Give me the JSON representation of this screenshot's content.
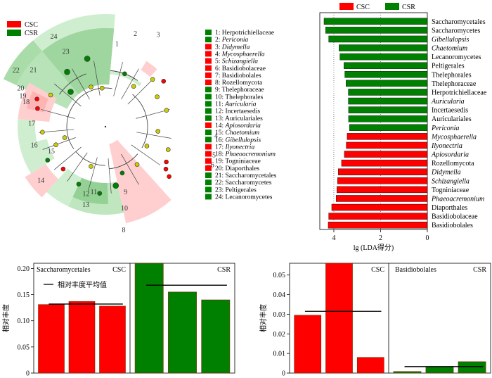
{
  "cladogram": {
    "legend_groups": [
      {
        "label": "CSC",
        "color": "#ff0000"
      },
      {
        "label": "CSR",
        "color": "#008000"
      }
    ],
    "taxa": [
      {
        "num": "1",
        "name": "Herpotrichiellaceae",
        "group": "CSR",
        "italic": false
      },
      {
        "num": "2",
        "name": "Periconia",
        "group": "CSR",
        "italic": true
      },
      {
        "num": "3",
        "name": "Didymella",
        "group": "CSC",
        "italic": true
      },
      {
        "num": "4",
        "name": "Mycosphaerella",
        "group": "CSC",
        "italic": true
      },
      {
        "num": "5",
        "name": "Schizangiella",
        "group": "CSC",
        "italic": true
      },
      {
        "num": "6",
        "name": "Basidiobolaceae",
        "group": "CSC",
        "italic": false
      },
      {
        "num": "7",
        "name": "Basidiobolales",
        "group": "CSC",
        "italic": false
      },
      {
        "num": "8",
        "name": "Rozellomycota",
        "group": "CSC",
        "italic": false
      },
      {
        "num": "9",
        "name": "Thelephoraceae",
        "group": "CSR",
        "italic": false
      },
      {
        "num": "10",
        "name": "Thelephorales",
        "group": "CSR",
        "italic": false
      },
      {
        "num": "11",
        "name": "Auricularia",
        "group": "CSR",
        "italic": true
      },
      {
        "num": "12",
        "name": "Incertaesedis",
        "group": "CSR",
        "italic": false
      },
      {
        "num": "13",
        "name": "Auriculariales",
        "group": "CSR",
        "italic": false
      },
      {
        "num": "14",
        "name": "Apiosordaria",
        "group": "CSC",
        "italic": true
      },
      {
        "num": "15",
        "name": "Chaetomium",
        "group": "CSR",
        "italic": true
      },
      {
        "num": "16",
        "name": "Gibellulopsis",
        "group": "CSR",
        "italic": true
      },
      {
        "num": "17",
        "name": "Ilyonectria",
        "group": "CSC",
        "italic": true
      },
      {
        "num": "18",
        "name": "Phaeoacremonium",
        "group": "CSC",
        "italic": true
      },
      {
        "num": "19",
        "name": "Togniniaceae",
        "group": "CSC",
        "italic": false
      },
      {
        "num": "20",
        "name": "Diaporthales",
        "group": "CSC",
        "italic": false
      },
      {
        "num": "21",
        "name": "Saccharomycetales",
        "group": "CSR",
        "italic": false
      },
      {
        "num": "22",
        "name": "Saccharomycetes",
        "group": "CSR",
        "italic": false
      },
      {
        "num": "23",
        "name": "Peltigerales",
        "group": "CSR",
        "italic": false
      },
      {
        "num": "24",
        "name": "Lecanoromycetes",
        "group": "CSR",
        "italic": false
      }
    ]
  },
  "chart_data": [
    {
      "type": "bar",
      "orientation": "horizontal",
      "legend": [
        {
          "label": "CSC",
          "color": "#ff0000"
        },
        {
          "label": "CSR",
          "color": "#008000"
        }
      ],
      "xlabel": "lg (LDA得分)",
      "xticks": [
        "4",
        "2",
        "0"
      ],
      "xlim": [
        0,
        4.6
      ],
      "reversed_x": true,
      "grid": "dotted vertical lines at 2 and 4",
      "categories": [
        "Saccharomycetales",
        "Saccharomycetes",
        "Gibellulopsis",
        "Chaetomium",
        "Lecanoromycetes",
        "Peltigerales",
        "Thelephorales",
        "Thelephoraceae",
        "Herpotrichiellaceae",
        "Auricularia",
        "Incertaesedis",
        "Auriculariales",
        "Periconia",
        "Mycosphaerella",
        "Ilyonectria",
        "Apiosordaria",
        "Rozellomycota",
        "Didymella",
        "Schizangiella",
        "Togniniaceae",
        "Phaeoacremonium",
        "Diaporthales",
        "Basidiobolaceae",
        "Basidiobolales"
      ],
      "italic": [
        false,
        false,
        true,
        true,
        false,
        false,
        false,
        false,
        false,
        true,
        false,
        false,
        true,
        true,
        true,
        true,
        false,
        true,
        true,
        false,
        true,
        false,
        false,
        false
      ],
      "groups": [
        "CSR",
        "CSR",
        "CSR",
        "CSR",
        "CSR",
        "CSR",
        "CSR",
        "CSR",
        "CSR",
        "CSR",
        "CSR",
        "CSR",
        "CSR",
        "CSC",
        "CSC",
        "CSC",
        "CSC",
        "CSC",
        "CSC",
        "CSC",
        "CSC",
        "CSC",
        "CSC",
        "CSC"
      ],
      "values": [
        4.42,
        4.35,
        4.22,
        3.78,
        3.74,
        3.57,
        3.53,
        3.48,
        3.38,
        3.38,
        3.37,
        3.37,
        3.33,
        3.43,
        3.47,
        3.55,
        3.67,
        3.81,
        3.84,
        3.87,
        3.9,
        4.09,
        4.22,
        4.24
      ]
    },
    {
      "type": "bar",
      "taxon": "Saccharomycetales",
      "ylabel": "相对丰度",
      "mean_label": "相对丰度平均值",
      "ylim": [
        0,
        0.21
      ],
      "yticks": [
        "0",
        "0.05",
        "0.10",
        "0.15",
        "0.20"
      ],
      "groups": [
        {
          "name": "CSC",
          "color": "#ff0000",
          "values": [
            0.131,
            0.137,
            0.128
          ],
          "mean": 0.132
        },
        {
          "name": "CSR",
          "color": "#008000",
          "values": [
            0.21,
            0.155,
            0.14
          ],
          "mean": 0.168
        }
      ]
    },
    {
      "type": "bar",
      "taxon": "Basidiobolales",
      "ylabel": "相对丰度",
      "ylim": [
        0,
        0.056
      ],
      "yticks": [
        "0",
        "0.01",
        "0.02",
        "0.03",
        "0.04",
        "0.05"
      ],
      "groups": [
        {
          "name": "CSC",
          "color": "#ff0000",
          "values": [
            0.0295,
            0.056,
            0.008
          ],
          "mean": 0.0315
        },
        {
          "name": "CSR",
          "color": "#008000",
          "values": [
            0.0008,
            0.0032,
            0.0058
          ],
          "mean": 0.0033
        }
      ]
    }
  ]
}
